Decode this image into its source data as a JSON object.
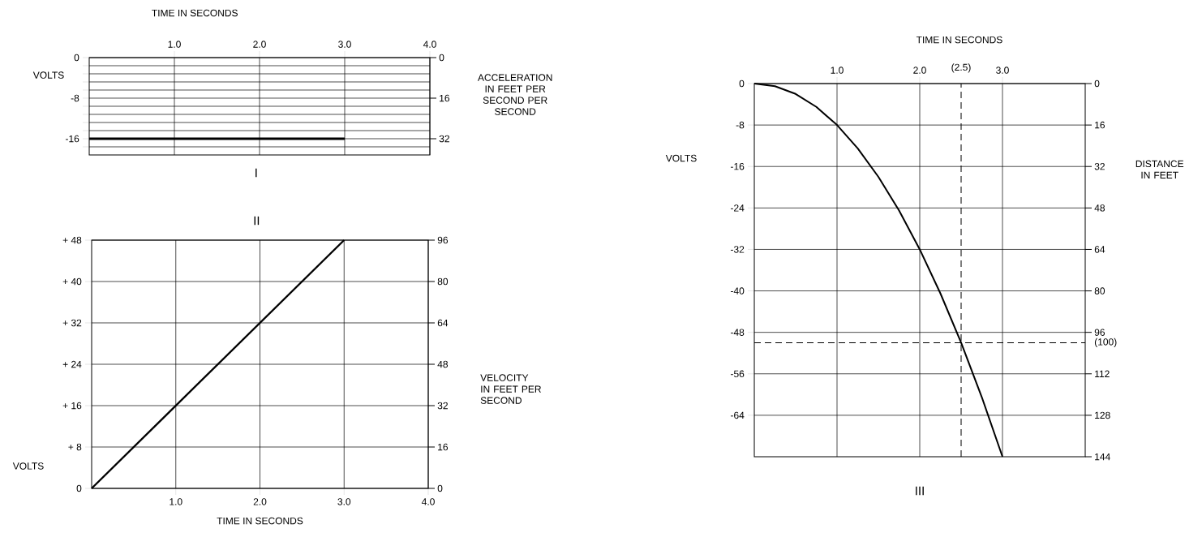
{
  "chart_data": [
    {
      "type": "line",
      "title": "I",
      "xlabel": "TIME IN SECONDS",
      "ylabel": "VOLTS",
      "y2label": "ACCELERATION IN FEET PER SECOND PER SECOND",
      "xlim": [
        0,
        4
      ],
      "xticks": [
        {
          "value": 1,
          "label": "1.0"
        },
        {
          "value": 2,
          "label": "2.0"
        },
        {
          "value": 3,
          "label": "3.0"
        },
        {
          "value": 4,
          "label": "4.0"
        }
      ],
      "ylim": [
        -19.2,
        0
      ],
      "yticks": [
        0,
        {
          "value": -1.6,
          "label": null
        },
        {
          "value": -3.2,
          "label": null
        },
        {
          "value": -4.8,
          "label": null
        },
        {
          "value": -6.4,
          "label": null
        },
        -8,
        {
          "value": -9.6,
          "label": null
        },
        {
          "value": -11.2,
          "label": null
        },
        {
          "value": -12.8,
          "label": null
        },
        {
          "value": -14.4,
          "label": null
        },
        -16,
        {
          "value": -17.6,
          "label": null
        }
      ],
      "y2lim": [
        38.4,
        0
      ],
      "y2ticks": [
        0,
        16,
        32
      ],
      "grid": true,
      "series": [
        {
          "color": "#000000",
          "x": [
            0,
            3
          ],
          "values": [
            -16,
            -16
          ]
        }
      ]
    },
    {
      "type": "line",
      "title": "II",
      "xlabel": "TIME IN SECONDS",
      "ylabel": "VOLTS",
      "y2label": "VELOCITY IN FEET PER SECOND",
      "xlim": [
        0,
        4
      ],
      "xticks": [
        {
          "value": 1,
          "label": "1.0"
        },
        {
          "value": 2,
          "label": "2.0"
        },
        {
          "value": 3,
          "label": "3.0"
        },
        {
          "value": 4,
          "label": "4.0"
        }
      ],
      "ylim": [
        0,
        48
      ],
      "yticks": [
        0,
        {
          "value": 8,
          "label": "+ 8"
        },
        {
          "value": 16,
          "label": "+ 16"
        },
        {
          "value": 24,
          "label": "+ 24"
        },
        {
          "value": 32,
          "label": "+ 32"
        },
        {
          "value": 40,
          "label": "+ 40"
        },
        {
          "value": 48,
          "label": "+ 48"
        }
      ],
      "y2lim": [
        0,
        96
      ],
      "y2ticks": [
        0,
        16,
        32,
        48,
        64,
        80,
        96
      ],
      "grid": true,
      "series": [
        {
          "color": "#000000",
          "x": [
            0,
            3
          ],
          "values": [
            0,
            48
          ]
        }
      ]
    },
    {
      "type": "line",
      "title": "III",
      "xlabel": "TIME IN SECONDS",
      "ylabel": "VOLTS",
      "y2label": "DISTANCE IN FEET",
      "xlim": [
        0,
        4
      ],
      "xticks": [
        {
          "value": 1,
          "label": "1.0"
        },
        {
          "value": 2,
          "label": "2.0"
        },
        {
          "value": 3,
          "label": "3.0"
        }
      ],
      "ylim": [
        -72,
        0
      ],
      "yticks": [
        0,
        -8,
        -16,
        -24,
        -32,
        -40,
        -48,
        -56,
        -64
      ],
      "y2lim": [
        144,
        0
      ],
      "y2ticks": [
        0,
        16,
        32,
        48,
        64,
        80,
        96,
        112,
        128,
        144
      ],
      "grid": true,
      "ref_lines": [
        {
          "axis": "x",
          "value": 2.5,
          "label": "(2.5)",
          "line_style": "dashed"
        },
        {
          "axis": "y2",
          "value": 100,
          "label": "(100)",
          "line_style": "dashed"
        }
      ],
      "series": [
        {
          "color": "#000000",
          "x": [
            0,
            0.25,
            0.5,
            0.75,
            1,
            1.25,
            1.5,
            1.75,
            2,
            2.25,
            2.5,
            2.75,
            3
          ],
          "values": [
            0,
            -0.5,
            -2,
            -4.5,
            -8,
            -12.5,
            -18,
            -24.5,
            -32,
            -40.5,
            -50,
            -60.5,
            -72
          ]
        }
      ]
    }
  ]
}
